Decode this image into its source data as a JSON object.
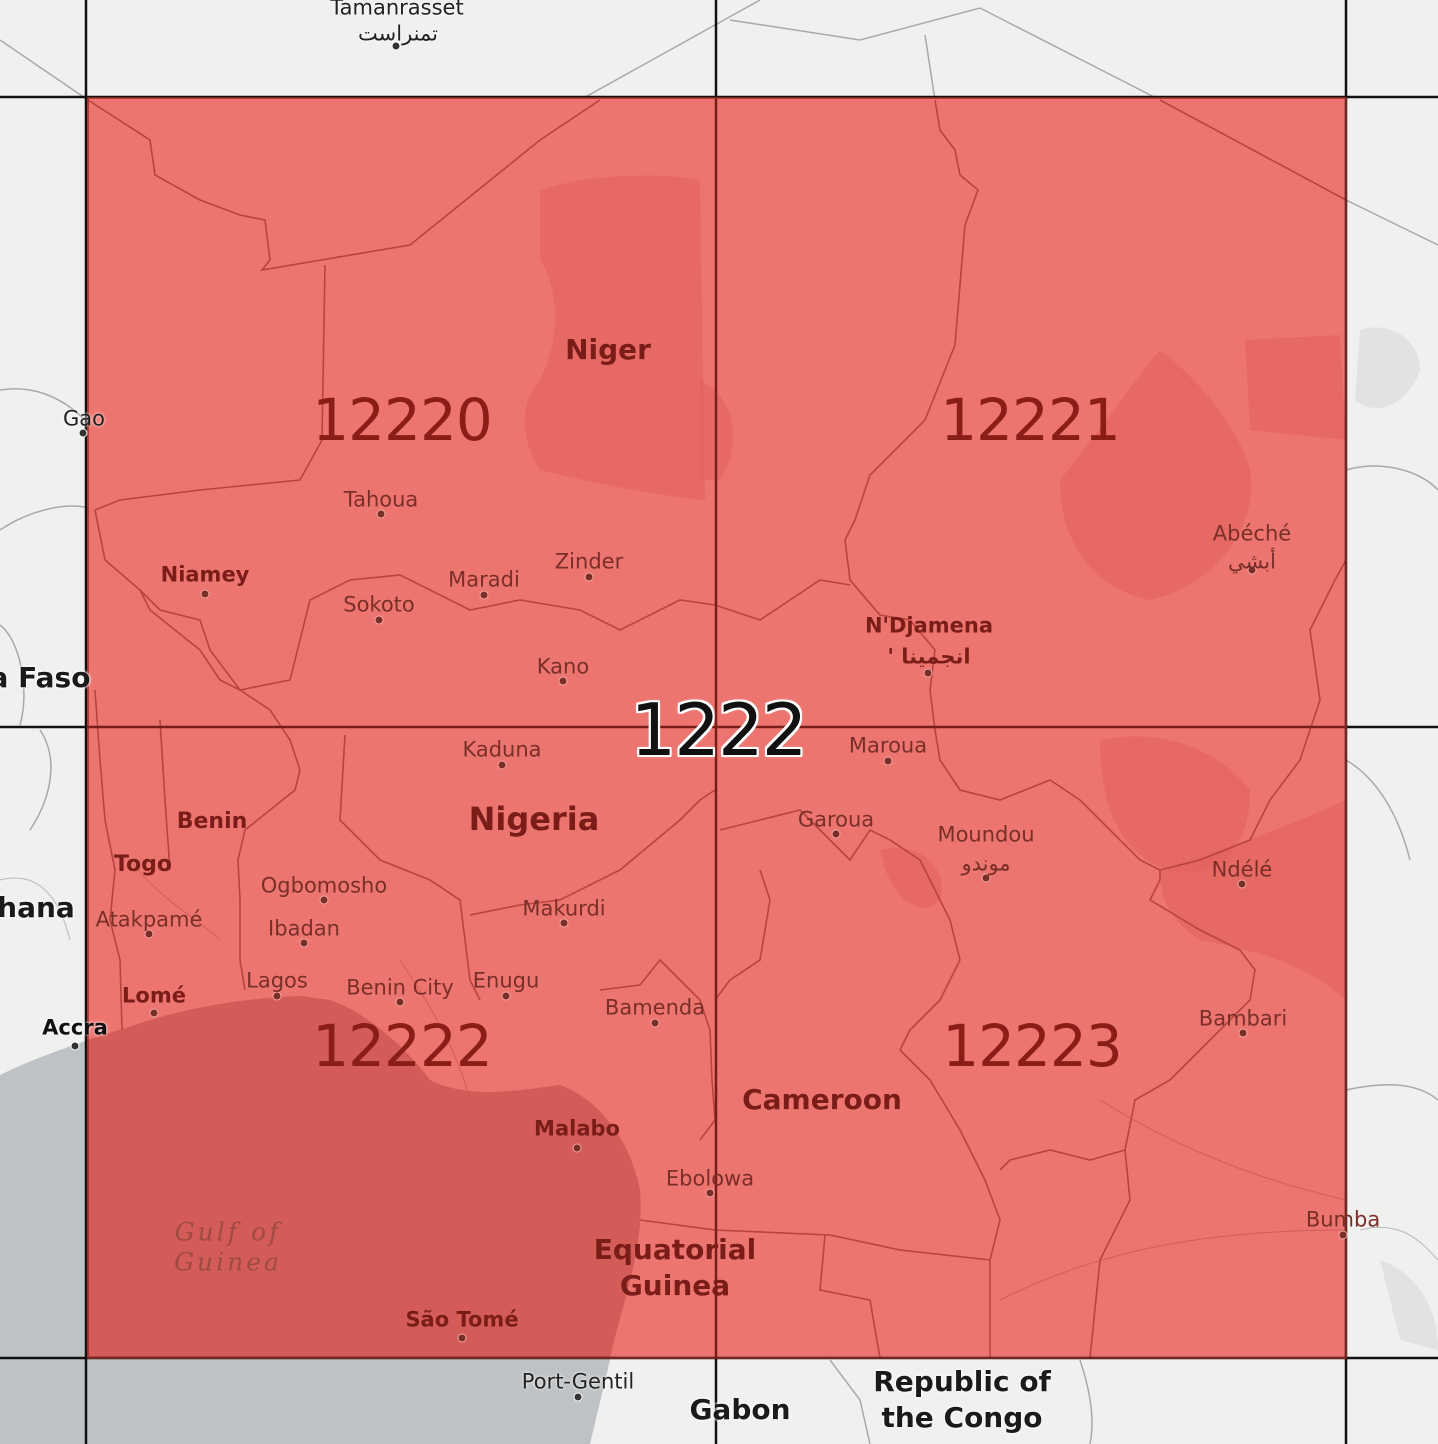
{
  "map": {
    "parent_tile": "1222",
    "tiles": [
      {
        "id": "12220"
      },
      {
        "id": "12221"
      },
      {
        "id": "12222"
      },
      {
        "id": "12223"
      }
    ],
    "tile_fill_color": "#ec6f6a",
    "countries": [
      {
        "name": "Niger"
      },
      {
        "name": "Nigeria"
      },
      {
        "name": "Benin"
      },
      {
        "name": "Togo"
      },
      {
        "name": "Cameroon"
      },
      {
        "name": "Equatorial"
      },
      {
        "name": "Guinea"
      },
      {
        "name": "Gabon"
      },
      {
        "name": "Republic of"
      },
      {
        "name": "the Congo"
      },
      {
        "name": "a Faso"
      },
      {
        "name": "hana"
      }
    ],
    "cities": [
      {
        "name": "Tamanrasset"
      },
      {
        "name": "تمنراست"
      },
      {
        "name": "Gao"
      },
      {
        "name": "Tahoua"
      },
      {
        "name": "Niamey"
      },
      {
        "name": "Maradi"
      },
      {
        "name": "Zinder"
      },
      {
        "name": "Sokoto"
      },
      {
        "name": "Kano"
      },
      {
        "name": "Kaduna"
      },
      {
        "name": "N'Djamena"
      },
      {
        "name": "' انجمينا"
      },
      {
        "name": "Abéché"
      },
      {
        "name": "أبشي"
      },
      {
        "name": "Maroua"
      },
      {
        "name": "Garoua"
      },
      {
        "name": "Moundou"
      },
      {
        "name": "موندو"
      },
      {
        "name": "Ndélé"
      },
      {
        "name": "Ogbomosho"
      },
      {
        "name": "Ibadan"
      },
      {
        "name": "Makurdi"
      },
      {
        "name": "Atakpamé"
      },
      {
        "name": "Lagos"
      },
      {
        "name": "Benin City"
      },
      {
        "name": "Enugu"
      },
      {
        "name": "Lomé"
      },
      {
        "name": "Accra"
      },
      {
        "name": "Bamenda"
      },
      {
        "name": "Bambari"
      },
      {
        "name": "Malabo"
      },
      {
        "name": "Ebolowa"
      },
      {
        "name": "São Tomé"
      },
      {
        "name": "Bumba"
      },
      {
        "name": "Port-Gentil"
      }
    ],
    "water_labels": [
      {
        "name": "Gulf of"
      },
      {
        "name": "Guinea"
      }
    ]
  }
}
